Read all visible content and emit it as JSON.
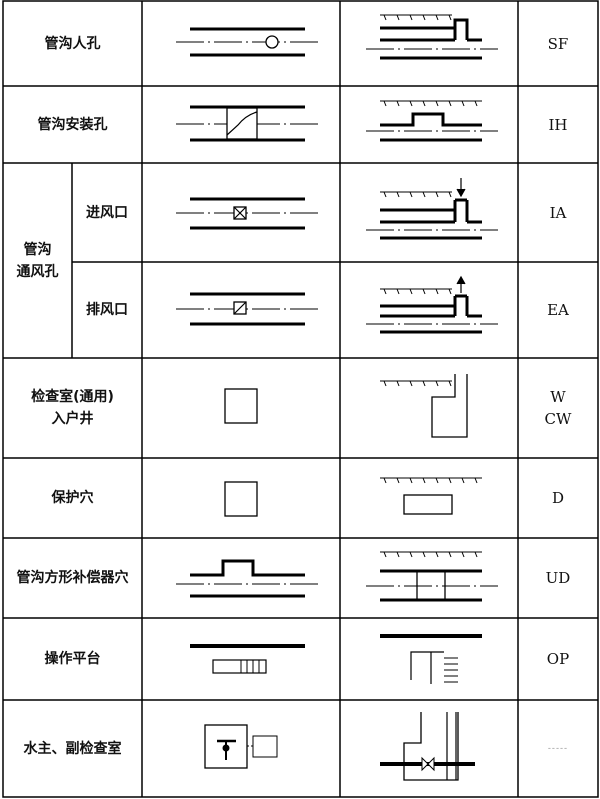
{
  "table": {
    "rows": [
      {
        "name": "管沟人孔",
        "code": "SF"
      },
      {
        "name": "管沟安装孔",
        "code": "IH"
      },
      {
        "group": "管沟\n通风孔",
        "name": "进风口",
        "code": "IA"
      },
      {
        "name": "排风口",
        "code": "EA"
      },
      {
        "name_line1": "检查室(通用)",
        "name_line2": "入户井",
        "code_line1": "W",
        "code_line2": "CW"
      },
      {
        "name": "保护穴",
        "code": "D"
      },
      {
        "name": "管沟方形补偿器穴",
        "code": "UD"
      },
      {
        "name": "操作平台",
        "code": "OP"
      },
      {
        "name": "水主、副检查室",
        "code": "-----"
      }
    ],
    "group_label_line1": "管沟",
    "group_label_line2": "通风孔"
  }
}
